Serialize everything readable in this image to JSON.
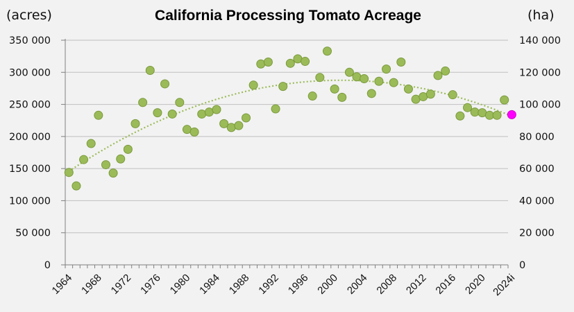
{
  "chart_data": {
    "type": "scatter",
    "title": "California Processing Tomato Acreage",
    "ylabel_left": "(acres)",
    "ylabel_right": "(ha)",
    "xlabel": "",
    "ylim": [
      0,
      350000
    ],
    "ylim_right": [
      0,
      140000
    ],
    "yticks_left": [
      "0",
      "50 000",
      "100 000",
      "150 000",
      "200 000",
      "250 000",
      "300 000",
      "350 000"
    ],
    "yticks_left_values": [
      0,
      50000,
      100000,
      150000,
      200000,
      250000,
      300000,
      350000
    ],
    "yticks_right": [
      "0",
      "20 000",
      "40 000",
      "60 000",
      "80 000",
      "100 000",
      "120 000",
      "140 000"
    ],
    "xtick_labels": [
      "1964",
      "1968",
      "1972",
      "1976",
      "1980",
      "1984",
      "1988",
      "1992",
      "1996",
      "2000",
      "2004",
      "2008",
      "2012",
      "2016",
      "2020",
      "2024i"
    ],
    "grid": true,
    "trendline": "polynomial order 2 (dotted)",
    "colors": {
      "point": "#9bbb59",
      "point_edge": "#7a9a3c",
      "highlight": "#ff00ff",
      "trend": "#9bbb59",
      "grid": "#bfbfbf",
      "axis": "#808080"
    },
    "x": [
      "1964",
      "1965",
      "1966",
      "1967",
      "1968",
      "1969",
      "1970",
      "1971",
      "1972",
      "1973",
      "1974",
      "1975",
      "1976",
      "1977",
      "1978",
      "1979",
      "1980",
      "1981",
      "1982",
      "1983",
      "1984",
      "1985",
      "1986",
      "1987",
      "1988",
      "1989",
      "1990",
      "1991",
      "1992",
      "1993",
      "1994",
      "1995",
      "1996",
      "1997",
      "1998",
      "1999",
      "2000",
      "2001",
      "2002",
      "2003",
      "2004",
      "2005",
      "2006",
      "2007",
      "2008",
      "2009",
      "2010",
      "2011",
      "2012",
      "2013",
      "2014",
      "2015",
      "2016",
      "2017",
      "2018",
      "2019",
      "2020",
      "2021",
      "2022",
      "2023",
      "2024i"
    ],
    "series": [
      {
        "name": "Acreage",
        "values": [
          144000,
          123000,
          164000,
          189000,
          233000,
          156000,
          143000,
          165000,
          180000,
          220000,
          253000,
          303000,
          237000,
          282000,
          235000,
          253000,
          211000,
          207000,
          235000,
          238000,
          242000,
          220000,
          214000,
          217000,
          229000,
          280000,
          313000,
          316000,
          243000,
          278000,
          314000,
          321000,
          317000,
          263000,
          292000,
          333000,
          274000,
          261000,
          300000,
          293000,
          290000,
          267000,
          286000,
          305000,
          284000,
          316000,
          274000,
          258000,
          262000,
          266000,
          295000,
          302000,
          265000,
          232000,
          245000,
          238000,
          237000,
          233000,
          233000,
          257000,
          234000
        ],
        "highlight_last": true
      }
    ]
  }
}
